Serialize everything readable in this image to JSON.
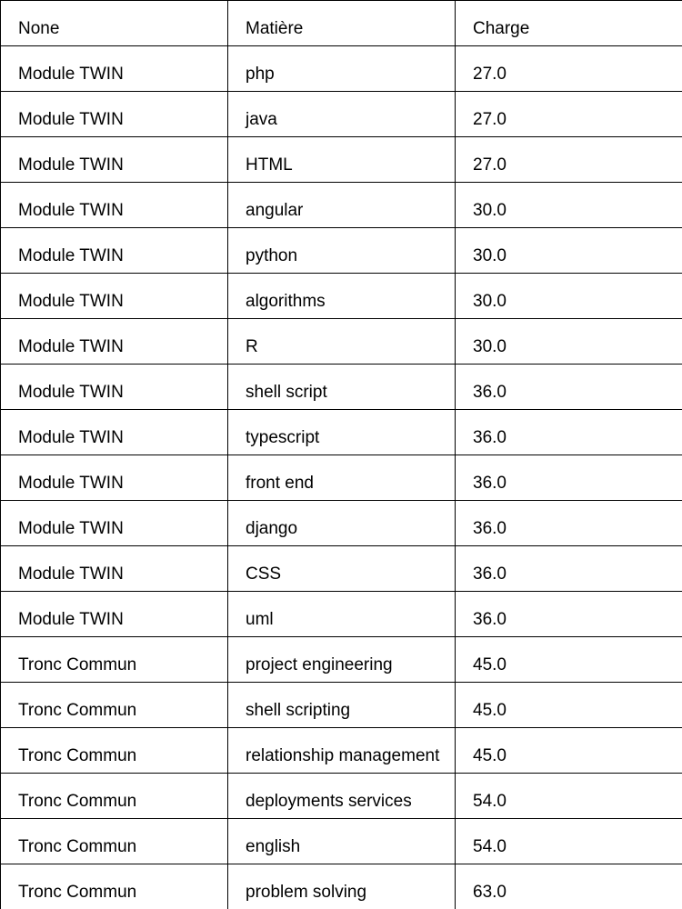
{
  "table": {
    "headers": [
      "None",
      "Matière",
      "Charge"
    ],
    "rows": [
      [
        "Module TWIN",
        "php",
        "27.0"
      ],
      [
        "Module TWIN",
        "java",
        "27.0"
      ],
      [
        "Module TWIN",
        "HTML",
        "27.0"
      ],
      [
        "Module TWIN",
        "angular",
        "30.0"
      ],
      [
        "Module TWIN",
        "python",
        "30.0"
      ],
      [
        "Module TWIN",
        "algorithms",
        "30.0"
      ],
      [
        "Module TWIN",
        "R",
        "30.0"
      ],
      [
        "Module TWIN",
        "shell script",
        "36.0"
      ],
      [
        "Module TWIN",
        "typescript",
        "36.0"
      ],
      [
        "Module TWIN",
        "front end",
        "36.0"
      ],
      [
        "Module TWIN",
        "django",
        "36.0"
      ],
      [
        "Module TWIN",
        "CSS",
        "36.0"
      ],
      [
        "Module TWIN",
        "uml",
        "36.0"
      ],
      [
        "Tronc Commun",
        "project engineering",
        "45.0"
      ],
      [
        "Tronc Commun",
        "shell scripting",
        "45.0"
      ],
      [
        "Tronc Commun",
        "relationship management",
        "45.0"
      ],
      [
        "Tronc Commun",
        "deployments services",
        "54.0"
      ],
      [
        "Tronc Commun",
        "english",
        "54.0"
      ],
      [
        "Tronc Commun",
        "problem solving",
        "63.0"
      ]
    ]
  }
}
